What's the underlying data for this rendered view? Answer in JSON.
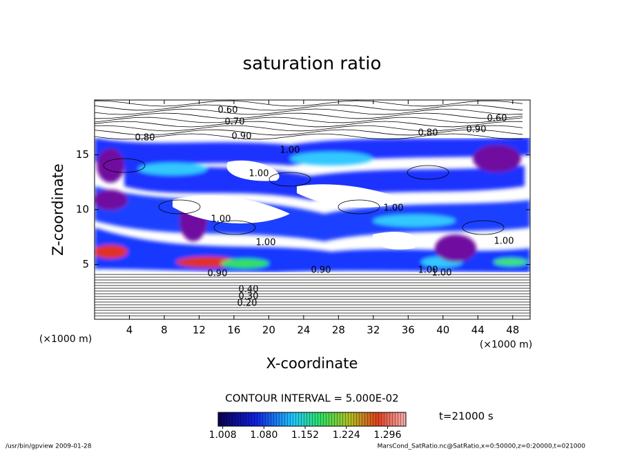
{
  "chart_data": {
    "type": "contour",
    "title": "saturation ratio",
    "x_label": "X-coordinate",
    "y_label": "Z-coordinate",
    "x_unit": "(×1000 m)",
    "y_unit": "(×1000 m)",
    "xlim": [
      0,
      50
    ],
    "xticks": [
      4,
      8,
      12,
      16,
      20,
      24,
      28,
      32,
      36,
      40,
      44,
      48
    ],
    "ylim": [
      0,
      20
    ],
    "yticks": [
      5,
      10,
      15
    ],
    "contour_interval": "CONTOUR INTERVAL = 5.000E-02",
    "time": "t=21000 s",
    "clim": [
      1.0,
      1.328
    ],
    "cticks": [
      {
        "value": 1.008,
        "label": "1.008"
      },
      {
        "value": 1.08,
        "label": "1.080"
      },
      {
        "value": 1.152,
        "label": "1.152"
      },
      {
        "value": 1.224,
        "label": "1.224"
      },
      {
        "value": 1.296,
        "label": "1.296"
      }
    ],
    "contour_labels": [
      "0.60",
      "0.70",
      "0.80",
      "0.90",
      "1.00",
      "1.00",
      "1.00",
      "1.00",
      "1.00",
      "1.00",
      "1.00",
      "0.90",
      "0.80",
      "0.90",
      "0.60",
      "0.90",
      "1.00",
      "0.20",
      "0.30",
      "0.40"
    ],
    "footer_left": "/usr/bin/gpview  2009-01-28",
    "footer_right": "MarsCond_SatRatio.nc@SatRatio,x=0:50000,z=0:20000,t=021000"
  }
}
